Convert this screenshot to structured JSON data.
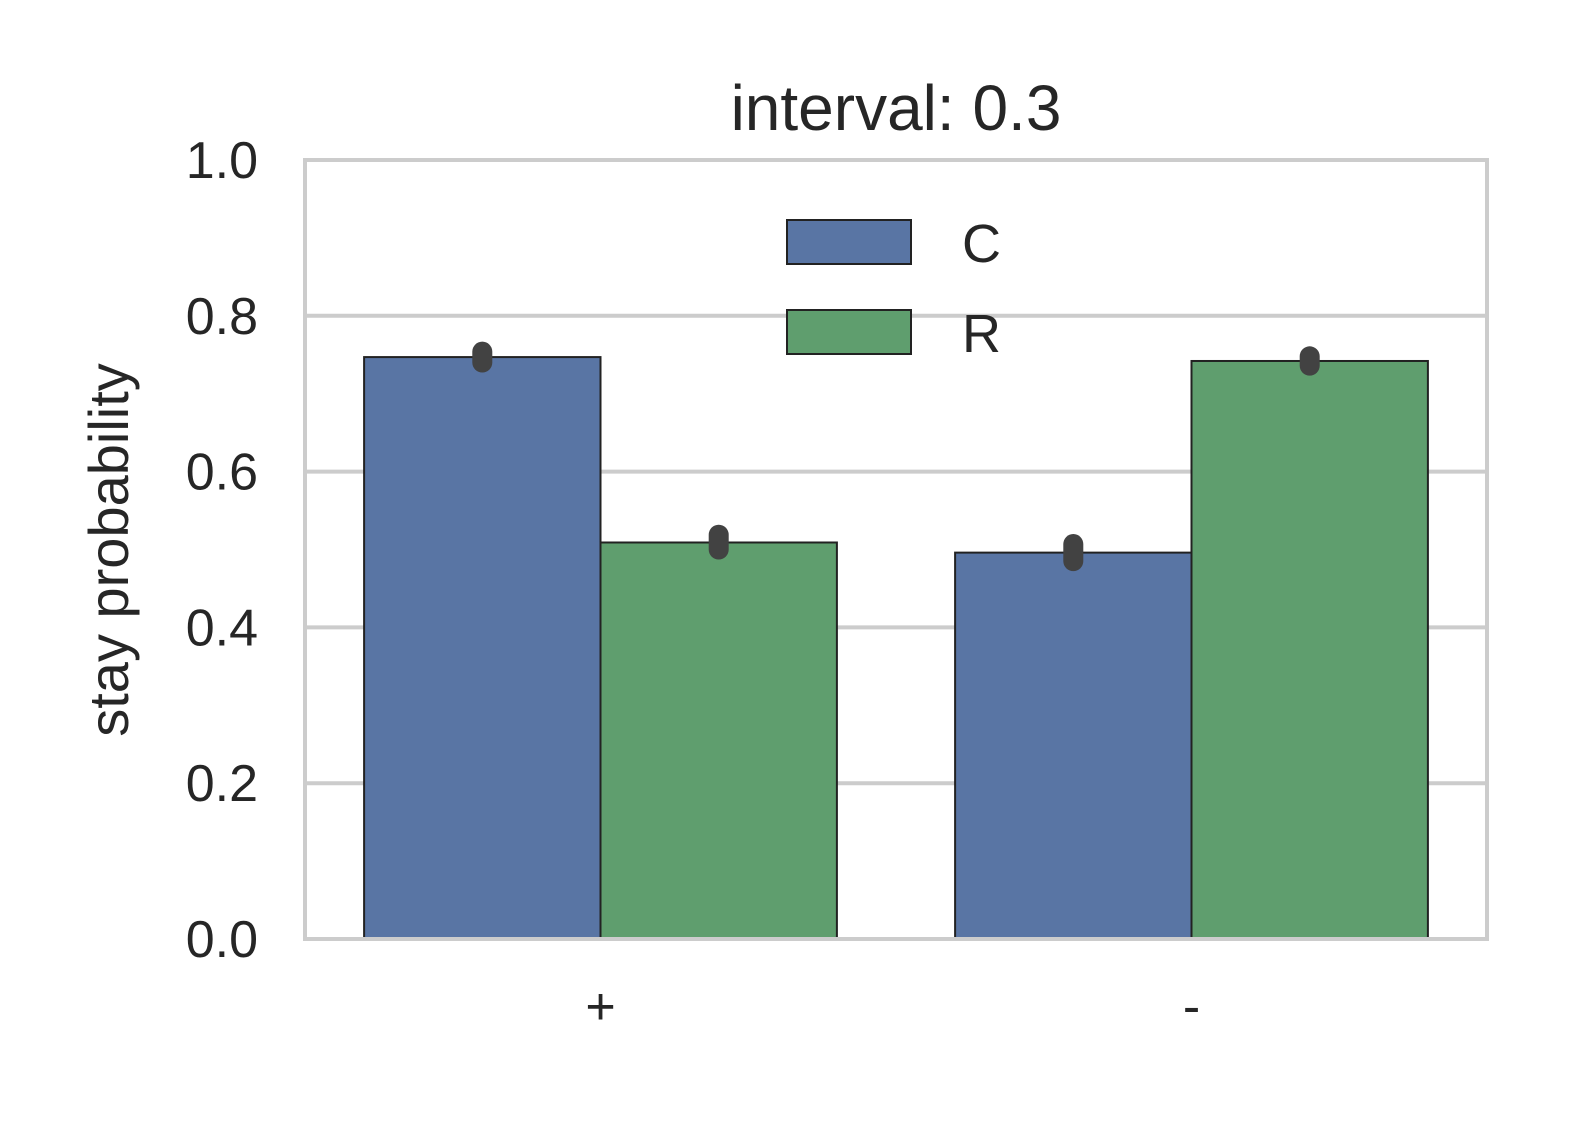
{
  "chart_data": {
    "type": "bar",
    "title": "interval: 0.3",
    "xlabel": "",
    "ylabel": "stay probability",
    "categories": [
      "+",
      "-"
    ],
    "ylim": [
      0,
      1.0
    ],
    "yticks": [
      "0.0",
      "0.2",
      "0.4",
      "0.6",
      "0.8",
      "1.0"
    ],
    "grid": true,
    "legend_position": "top-center",
    "series": [
      {
        "name": "C",
        "color": "#5975a4",
        "values": [
          0.747,
          0.496
        ],
        "error": [
          [
            0.74,
            0.754
          ],
          [
            0.485,
            0.507
          ]
        ]
      },
      {
        "name": "R",
        "color": "#5f9e6e",
        "values": [
          0.509,
          0.742
        ],
        "error": [
          [
            0.5,
            0.519
          ],
          [
            0.736,
            0.748
          ]
        ]
      }
    ]
  }
}
